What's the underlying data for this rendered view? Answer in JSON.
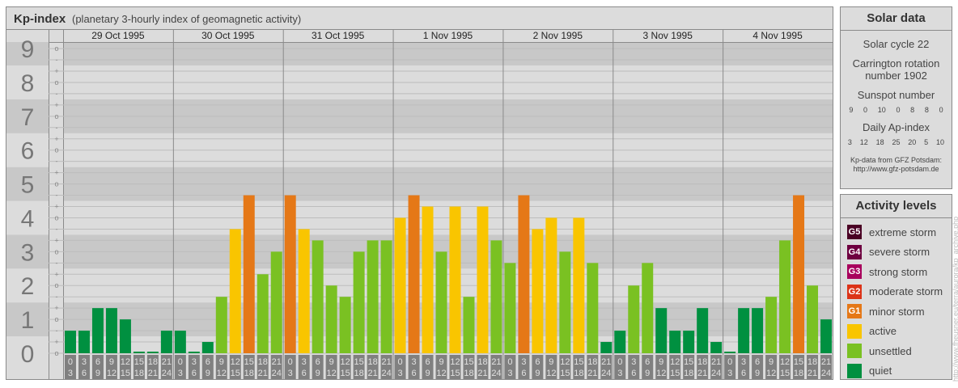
{
  "header": {
    "title": "Kp-index",
    "subtitle": "(planetary 3-hourly index of geomagnetic activity)"
  },
  "chart_data": {
    "type": "bar",
    "title": "Kp-index",
    "subtitle": "(planetary 3-hourly index of geomagnetic activity)",
    "days": [
      "29 Oct 1995",
      "30 Oct 1995",
      "31 Oct 1995",
      "1 Nov 1995",
      "2 Nov 1995",
      "3 Nov 1995",
      "4 Nov 1995"
    ],
    "intervals": [
      [
        "0",
        "3"
      ],
      [
        "3",
        "6"
      ],
      [
        "6",
        "9"
      ],
      [
        "9",
        "12"
      ],
      [
        "12",
        "15"
      ],
      [
        "15",
        "18"
      ],
      [
        "18",
        "21"
      ],
      [
        "21",
        "24"
      ]
    ],
    "y_major_ticks": [
      "0",
      "1",
      "2",
      "3",
      "4",
      "5",
      "6",
      "7",
      "8",
      "9"
    ],
    "y_minor_marks": [
      "o",
      "+",
      "-"
    ],
    "ylim": [
      "0o",
      "9o"
    ],
    "grid": true,
    "kp": [
      [
        "1-",
        "1-",
        "1+",
        "1+",
        "1o",
        "0o",
        "0o",
        "1-"
      ],
      [
        "1-",
        "0o",
        "0+",
        "2-",
        "4-",
        "5-",
        "2+",
        "3o"
      ],
      [
        "5-",
        "4-",
        "3+",
        "2o",
        "2-",
        "3o",
        "3+",
        "3+"
      ],
      [
        "4o",
        "5-",
        "4+",
        "3o",
        "4+",
        "2-",
        "4+",
        "3+"
      ],
      [
        "3-",
        "5-",
        "4-",
        "4o",
        "3o",
        "4o",
        "3-",
        "0+"
      ],
      [
        "1-",
        "2o",
        "3-",
        "1+",
        "1-",
        "1-",
        "1+",
        "0+"
      ],
      [
        "0o",
        "1+",
        "1+",
        "2-",
        "3+",
        "5-",
        "2o",
        "1o"
      ]
    ]
  },
  "solar": {
    "title": "Solar data",
    "cycle": "Solar cycle 22",
    "carrington": "Carrington rotation number 1902",
    "sunspot_label": "Sunspot number",
    "sunspot": [
      "9",
      "0",
      "10",
      "0",
      "8",
      "8",
      "0"
    ],
    "ap_label": "Daily Ap-index",
    "ap": [
      "3",
      "12",
      "18",
      "25",
      "20",
      "5",
      "10"
    ],
    "source1": "Kp-data from GFZ Potsdam:",
    "source2": "http://www.gfz-potsdam.de"
  },
  "levels": {
    "title": "Activity levels",
    "items": [
      {
        "badge": "G5",
        "label": "extreme storm",
        "color": "#4a0024"
      },
      {
        "badge": "G4",
        "label": "severe storm",
        "color": "#6e0040"
      },
      {
        "badge": "G3",
        "label": "strong storm",
        "color": "#a8005c"
      },
      {
        "badge": "G2",
        "label": "moderate storm",
        "color": "#dc3318"
      },
      {
        "badge": "G1",
        "label": "minor storm",
        "color": "#e57817"
      },
      {
        "badge": "",
        "label": "active",
        "color": "#f9c500"
      },
      {
        "badge": "",
        "label": "unsettled",
        "color": "#7ac122"
      },
      {
        "badge": "",
        "label": "quiet",
        "color": "#009040"
      }
    ]
  },
  "watermark": "http://www.fheusner.eu/terra/aurora/kp_archive.php"
}
